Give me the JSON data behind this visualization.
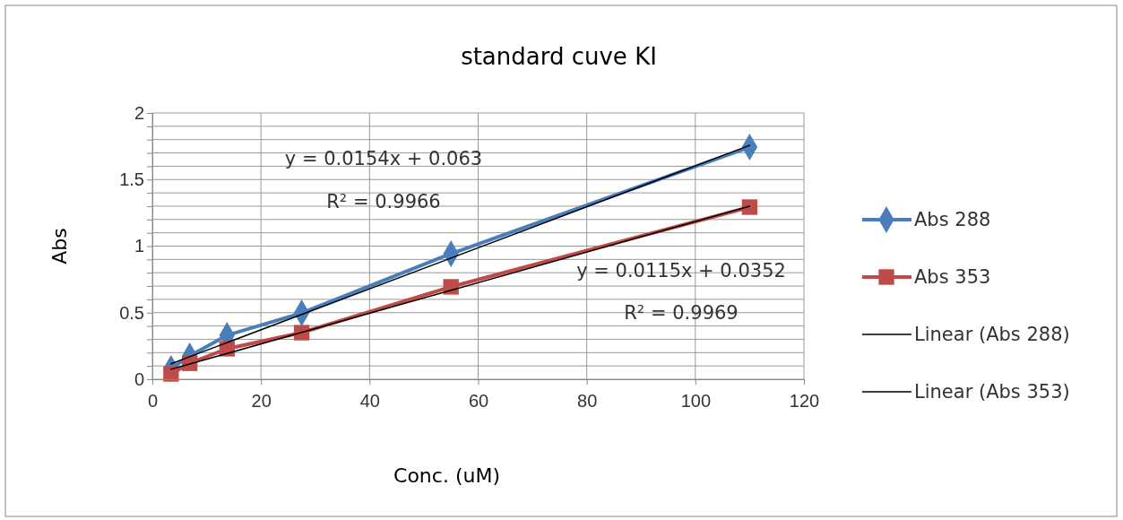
{
  "chart_data": {
    "type": "line",
    "title": "standard cuve KI",
    "xlabel": "Conc. (uM)",
    "ylabel": "Abs",
    "xlim": [
      0,
      120
    ],
    "xticks": [
      0,
      20,
      40,
      60,
      80,
      100,
      120
    ],
    "ylim": [
      0,
      2
    ],
    "yticks": [
      0,
      {
        "value": 0.1,
        "label": null
      },
      {
        "value": 0.2,
        "label": null
      },
      {
        "value": 0.3,
        "label": null
      },
      {
        "value": 0.4,
        "label": null
      },
      0.5,
      {
        "value": 0.6,
        "label": null
      },
      {
        "value": 0.7,
        "label": null
      },
      {
        "value": 0.8,
        "label": null
      },
      {
        "value": 0.9,
        "label": null
      },
      1,
      {
        "value": 1.1,
        "label": null
      },
      {
        "value": 1.2,
        "label": null
      },
      {
        "value": 1.3,
        "label": null
      },
      {
        "value": 1.4,
        "label": null
      },
      1.5,
      {
        "value": 1.6,
        "label": null
      },
      {
        "value": 1.7,
        "label": null
      },
      {
        "value": 1.8,
        "label": null
      },
      {
        "value": 1.9,
        "label": null
      },
      2
    ],
    "grid": true,
    "legend": "right",
    "x": [
      3.44,
      6.88,
      13.75,
      27.5,
      55,
      110
    ],
    "series": [
      {
        "name": "Abs 288",
        "color": "#4a7ebb",
        "marker": "diamond",
        "values": [
          0.08,
          0.175,
          0.33,
          0.498,
          0.943,
          1.744
        ]
      },
      {
        "name": "Abs 353",
        "color": "#be4b48",
        "marker": "square",
        "values": [
          0.04,
          0.12,
          0.229,
          0.35,
          0.694,
          1.293
        ]
      },
      {
        "name": "Linear (Abs 288)",
        "color": "#000000",
        "marker": "none",
        "values": [
          0.116,
          0.169,
          0.275,
          0.487,
          0.91,
          1.757
        ]
      },
      {
        "name": "Linear (Abs 353)",
        "color": "#000000",
        "marker": "none",
        "values": [
          0.075,
          0.114,
          0.193,
          0.352,
          0.668,
          1.3
        ]
      }
    ],
    "annotations": [
      "y = 0.0154x + 0.063",
      "R² = 0.9966",
      "y = 0.0115x + 0.0352",
      "R² = 0.9969"
    ]
  }
}
